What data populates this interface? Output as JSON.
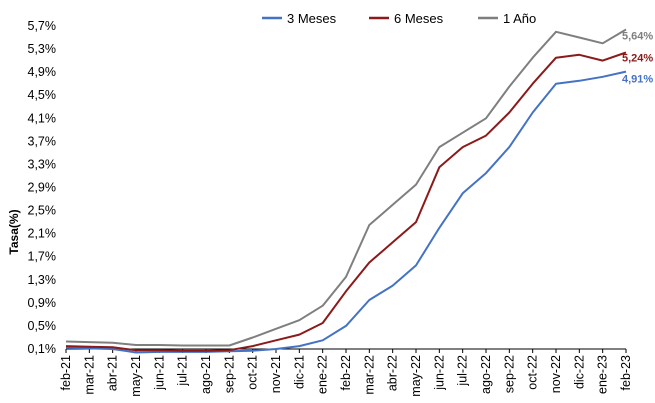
{
  "chart_data": {
    "type": "line",
    "title": "",
    "ylabel": "Tasa(%)",
    "xlabel": "",
    "ylim": [
      0.1,
      5.7
    ],
    "y_ticks": [
      "0,1%",
      "0,5%",
      "0,9%",
      "1,3%",
      "1,7%",
      "2,1%",
      "2,5%",
      "2,9%",
      "3,3%",
      "3,7%",
      "4,1%",
      "4,5%",
      "4,9%",
      "5,3%",
      "5,7%"
    ],
    "x_ticks": [
      "feb-21",
      "mar-21",
      "abr-21",
      "may-21",
      "jun-21",
      "jul-21",
      "ago-21",
      "sep-21",
      "oct-21",
      "nov-21",
      "dic-21",
      "ene-22",
      "feb-22",
      "mar-22",
      "abr-22",
      "may-22",
      "jun-22",
      "jul-22",
      "ago-22",
      "sep-22",
      "oct-22",
      "nov-22",
      "dic-22",
      "ene-23",
      "feb-23"
    ],
    "x": [
      "feb-21",
      "mar-21",
      "abr-21",
      "may-21",
      "jun-21",
      "jul-21",
      "ago-21",
      "sep-21",
      "oct-21",
      "nov-21",
      "dic-21",
      "ene-22",
      "feb-22",
      "mar-22",
      "abr-22",
      "may-22",
      "jun-22",
      "jul-22",
      "ago-22",
      "sep-22",
      "oct-22",
      "nov-22",
      "dic-22",
      "ene-23",
      "feb-23"
    ],
    "grid": false,
    "legend": "top",
    "series": [
      {
        "name": "3 Meses",
        "color": "#4472C4",
        "end_label": "4,91%",
        "values": [
          0.12,
          0.11,
          0.1,
          0.04,
          0.05,
          0.05,
          0.05,
          0.06,
          0.07,
          0.1,
          0.15,
          0.25,
          0.5,
          0.95,
          1.2,
          1.55,
          2.2,
          2.8,
          3.15,
          3.6,
          4.2,
          4.7,
          4.75,
          4.82,
          4.91
        ]
      },
      {
        "name": "6 Meses",
        "color": "#8B1A1A",
        "end_label": "5,24%",
        "values": [
          0.15,
          0.14,
          0.13,
          0.08,
          0.08,
          0.07,
          0.07,
          0.08,
          0.15,
          0.25,
          0.35,
          0.55,
          1.1,
          1.6,
          1.95,
          2.3,
          3.25,
          3.6,
          3.8,
          4.2,
          4.7,
          5.15,
          5.2,
          5.1,
          5.24
        ]
      },
      {
        "name": "1 Año",
        "color": "#7F7F7F",
        "end_label": "5,64%",
        "values": [
          0.23,
          0.22,
          0.21,
          0.17,
          0.17,
          0.16,
          0.16,
          0.16,
          0.3,
          0.45,
          0.6,
          0.85,
          1.35,
          2.25,
          2.6,
          2.95,
          3.6,
          3.85,
          4.1,
          4.65,
          5.15,
          5.6,
          5.5,
          5.4,
          5.64
        ]
      }
    ]
  }
}
